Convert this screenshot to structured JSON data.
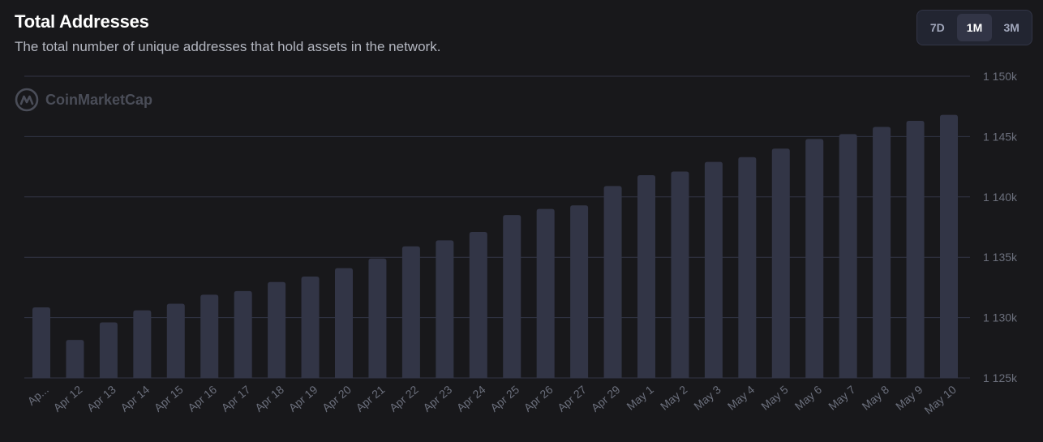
{
  "header": {
    "title": "Total Addresses",
    "subtitle": "The total number of unique addresses that hold assets in the network."
  },
  "range_selector": {
    "options": [
      "7D",
      "1M",
      "3M"
    ],
    "selected": "1M"
  },
  "watermark": {
    "text": "CoinMarketCap",
    "icon": "coinmarketcap-logo-icon"
  },
  "colors": {
    "background": "#18181b",
    "bar": "#323546",
    "grid": "#323546",
    "axis_text": "#6b6f7c"
  },
  "chart_data": {
    "type": "bar",
    "title": "Total Addresses",
    "categories": [
      "Ap...",
      "Apr 12",
      "Apr 13",
      "Apr 14",
      "Apr 15",
      "Apr 16",
      "Apr 17",
      "Apr 18",
      "Apr 19",
      "Apr 20",
      "Apr 21",
      "Apr 22",
      "Apr 23",
      "Apr 24",
      "Apr 25",
      "Apr 26",
      "Apr 27",
      "Apr 29",
      "May 1",
      "May 2",
      "May 3",
      "May 4",
      "May 5",
      "May 6",
      "May 7",
      "May 8",
      "May 9",
      "May 10"
    ],
    "values": [
      1130850,
      1128150,
      1129600,
      1130600,
      1131150,
      1131900,
      1132200,
      1132950,
      1133400,
      1134100,
      1134900,
      1135900,
      1136400,
      1137100,
      1138500,
      1139000,
      1139300,
      1140900,
      1141800,
      1142100,
      1142900,
      1143300,
      1144000,
      1144800,
      1145200,
      1145800,
      1146300,
      1146800
    ],
    "ylim": [
      1125000,
      1150000
    ],
    "yticks": [
      1125000,
      1130000,
      1135000,
      1140000,
      1145000,
      1150000
    ],
    "ytick_labels": [
      "1 125k",
      "1 130k",
      "1 135k",
      "1 140k",
      "1 145k",
      "1 150k"
    ],
    "y_axis_position": "right",
    "grid": true,
    "xlabel": "",
    "ylabel": ""
  }
}
